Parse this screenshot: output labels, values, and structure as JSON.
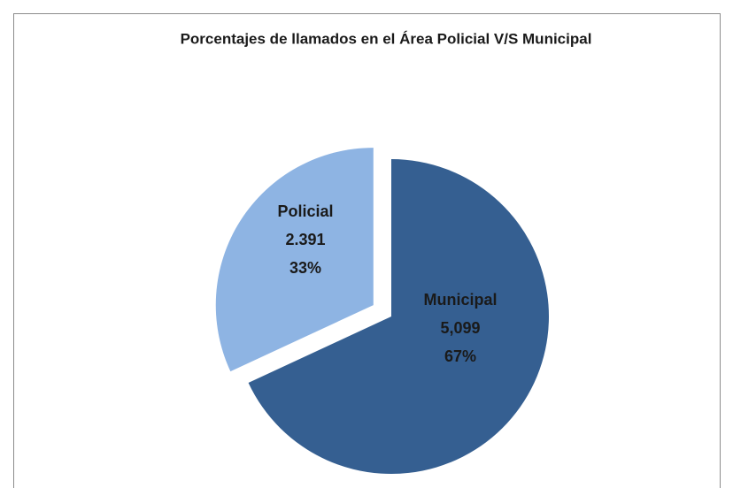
{
  "chart_data": {
    "type": "pie",
    "title": "Porcentajes de llamados  en el Área Policial  V/S Municipal",
    "categories": [
      "Municipal",
      "Policial"
    ],
    "values": [
      5099,
      2391
    ],
    "value_labels": [
      "5,099",
      "2.391"
    ],
    "percent_labels": [
      "67%",
      "33%"
    ],
    "colors": [
      "#355f91",
      "#8eb4e3"
    ]
  }
}
